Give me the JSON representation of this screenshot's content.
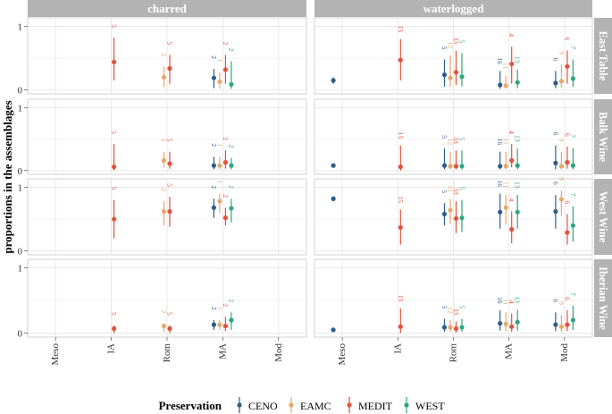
{
  "chart_data": {
    "type": "faceted-pointrange",
    "ylabel": "proportions in the assemblages",
    "categories": [
      "Meso",
      "IA",
      "Rom",
      "MA",
      "Mod"
    ],
    "y_ticks": [
      "0",
      "1"
    ],
    "ylim": [
      0,
      1
    ],
    "columns": [
      "charred",
      "waterlogged"
    ],
    "rows": [
      "East Table",
      "Balk Wine",
      "West Wine",
      "Iberian Wine"
    ],
    "legend": {
      "title": "Preservation",
      "position": "bottom",
      "entries": [
        {
          "name": "CENO",
          "color": "#2c5d8a"
        },
        {
          "name": "EAMC",
          "color": "#e6a96b"
        },
        {
          "name": "MEDIT",
          "color": "#e4513a"
        },
        {
          "name": "WEST",
          "color": "#2ea581"
        }
      ]
    },
    "points": [
      {
        "col": "charred",
        "row": "East Table",
        "period": "IA",
        "group": "MEDIT",
        "y": 0.44,
        "lo": 0.15,
        "hi": 0.82,
        "n": "5"
      },
      {
        "col": "charred",
        "row": "East Table",
        "period": "Rom",
        "group": "EAMC",
        "y": 0.2,
        "lo": 0.05,
        "hi": 0.37,
        "n": "2"
      },
      {
        "col": "charred",
        "row": "East Table",
        "period": "Rom",
        "group": "MEDIT",
        "y": 0.34,
        "lo": 0.1,
        "hi": 0.55,
        "n": "5"
      },
      {
        "col": "charred",
        "row": "East Table",
        "period": "MA",
        "group": "CENO",
        "y": 0.19,
        "lo": 0.03,
        "hi": 0.33,
        "n": "2"
      },
      {
        "col": "charred",
        "row": "East Table",
        "period": "MA",
        "group": "EAMC",
        "y": 0.13,
        "lo": 0.02,
        "hi": 0.28,
        "n": "1"
      },
      {
        "col": "charred",
        "row": "East Table",
        "period": "MA",
        "group": "MEDIT",
        "y": 0.32,
        "lo": 0.1,
        "hi": 0.55,
        "n": "2"
      },
      {
        "col": "charred",
        "row": "East Table",
        "period": "MA",
        "group": "WEST",
        "y": 0.09,
        "lo": 0.02,
        "hi": 0.45,
        "n": "2"
      },
      {
        "col": "charred",
        "row": "Balk Wine",
        "period": "IA",
        "group": "MEDIT",
        "y": 0.06,
        "lo": 0.0,
        "hi": 0.42,
        "n": "5"
      },
      {
        "col": "charred",
        "row": "Balk Wine",
        "period": "Rom",
        "group": "EAMC",
        "y": 0.16,
        "lo": 0.05,
        "hi": 0.3,
        "n": "2"
      },
      {
        "col": "charred",
        "row": "Balk Wine",
        "period": "Rom",
        "group": "MEDIT",
        "y": 0.11,
        "lo": 0.03,
        "hi": 0.3,
        "n": "5"
      },
      {
        "col": "charred",
        "row": "Balk Wine",
        "period": "MA",
        "group": "CENO",
        "y": 0.08,
        "lo": 0.02,
        "hi": 0.22,
        "n": "2"
      },
      {
        "col": "charred",
        "row": "Balk Wine",
        "period": "MA",
        "group": "EAMC",
        "y": 0.08,
        "lo": 0.02,
        "hi": 0.22,
        "n": "1"
      },
      {
        "col": "charred",
        "row": "Balk Wine",
        "period": "MA",
        "group": "MEDIT",
        "y": 0.13,
        "lo": 0.03,
        "hi": 0.32,
        "n": "2"
      },
      {
        "col": "charred",
        "row": "Balk Wine",
        "period": "MA",
        "group": "WEST",
        "y": 0.08,
        "lo": 0.02,
        "hi": 0.2,
        "n": "2"
      },
      {
        "col": "charred",
        "row": "West Wine",
        "period": "IA",
        "group": "MEDIT",
        "y": 0.5,
        "lo": 0.2,
        "hi": 0.8,
        "n": "5"
      },
      {
        "col": "charred",
        "row": "West Wine",
        "period": "Rom",
        "group": "EAMC",
        "y": 0.62,
        "lo": 0.4,
        "hi": 0.78,
        "n": "2"
      },
      {
        "col": "charred",
        "row": "West Wine",
        "period": "Rom",
        "group": "MEDIT",
        "y": 0.62,
        "lo": 0.38,
        "hi": 0.85,
        "n": "5"
      },
      {
        "col": "charred",
        "row": "West Wine",
        "period": "MA",
        "group": "CENO",
        "y": 0.68,
        "lo": 0.52,
        "hi": 0.82,
        "n": "2"
      },
      {
        "col": "charred",
        "row": "West Wine",
        "period": "MA",
        "group": "EAMC",
        "y": 0.78,
        "lo": 0.6,
        "hi": 0.9,
        "n": "1"
      },
      {
        "col": "charred",
        "row": "West Wine",
        "period": "MA",
        "group": "MEDIT",
        "y": 0.52,
        "lo": 0.4,
        "hi": 0.68,
        "n": "2"
      },
      {
        "col": "charred",
        "row": "West Wine",
        "period": "MA",
        "group": "WEST",
        "y": 0.67,
        "lo": 0.45,
        "hi": 0.82,
        "n": "2"
      },
      {
        "col": "charred",
        "row": "Iberian Wine",
        "period": "IA",
        "group": "MEDIT",
        "y": 0.07,
        "lo": 0.0,
        "hi": 0.12,
        "n": "5"
      },
      {
        "col": "charred",
        "row": "Iberian Wine",
        "period": "Rom",
        "group": "EAMC",
        "y": 0.11,
        "lo": 0.02,
        "hi": 0.15,
        "n": "2"
      },
      {
        "col": "charred",
        "row": "Iberian Wine",
        "period": "Rom",
        "group": "MEDIT",
        "y": 0.07,
        "lo": 0.0,
        "hi": 0.12,
        "n": "5"
      },
      {
        "col": "charred",
        "row": "Iberian Wine",
        "period": "MA",
        "group": "CENO",
        "y": 0.13,
        "lo": 0.05,
        "hi": 0.2,
        "n": "2"
      },
      {
        "col": "charred",
        "row": "Iberian Wine",
        "period": "MA",
        "group": "EAMC",
        "y": 0.13,
        "lo": 0.05,
        "hi": 0.2,
        "n": "1"
      },
      {
        "col": "charred",
        "row": "Iberian Wine",
        "period": "MA",
        "group": "MEDIT",
        "y": 0.11,
        "lo": 0.03,
        "hi": 0.25,
        "n": "2"
      },
      {
        "col": "charred",
        "row": "Iberian Wine",
        "period": "MA",
        "group": "WEST",
        "y": 0.2,
        "lo": 0.05,
        "hi": 0.32,
        "n": "2"
      },
      {
        "col": "waterlogged",
        "row": "East Table",
        "period": "Meso",
        "group": "CENO",
        "y": 0.15,
        "lo": 0.1,
        "hi": 0.2,
        "n": ""
      },
      {
        "col": "waterlogged",
        "row": "East Table",
        "period": "IA",
        "group": "MEDIT",
        "y": 0.47,
        "lo": 0.15,
        "hi": 0.8,
        "n": "15"
      },
      {
        "col": "waterlogged",
        "row": "East Table",
        "period": "Rom",
        "group": "CENO",
        "y": 0.24,
        "lo": 0.05,
        "hi": 0.48,
        "n": "5"
      },
      {
        "col": "waterlogged",
        "row": "East Table",
        "period": "Rom",
        "group": "EAMC",
        "y": 0.19,
        "lo": 0.05,
        "hi": 0.55,
        "n": "12"
      },
      {
        "col": "waterlogged",
        "row": "East Table",
        "period": "Rom",
        "group": "MEDIT",
        "y": 0.28,
        "lo": 0.08,
        "hi": 0.62,
        "n": "33"
      },
      {
        "col": "waterlogged",
        "row": "East Table",
        "period": "Rom",
        "group": "WEST",
        "y": 0.21,
        "lo": 0.06,
        "hi": 0.58,
        "n": "5"
      },
      {
        "col": "waterlogged",
        "row": "East Table",
        "period": "MA",
        "group": "CENO",
        "y": 0.08,
        "lo": 0.02,
        "hi": 0.3,
        "n": "16"
      },
      {
        "col": "waterlogged",
        "row": "East Table",
        "period": "MA",
        "group": "EAMC",
        "y": 0.07,
        "lo": 0.02,
        "hi": 0.22,
        "n": "11"
      },
      {
        "col": "waterlogged",
        "row": "East Table",
        "period": "MA",
        "group": "MEDIT",
        "y": 0.41,
        "lo": 0.1,
        "hi": 0.68,
        "n": "4"
      },
      {
        "col": "waterlogged",
        "row": "East Table",
        "period": "MA",
        "group": "WEST",
        "y": 0.12,
        "lo": 0.03,
        "hi": 0.32,
        "n": "13"
      },
      {
        "col": "waterlogged",
        "row": "East Table",
        "period": "Mod",
        "group": "CENO",
        "y": 0.11,
        "lo": 0.03,
        "hi": 0.3,
        "n": "6"
      },
      {
        "col": "waterlogged",
        "row": "East Table",
        "period": "Mod",
        "group": "EAMC",
        "y": 0.14,
        "lo": 0.04,
        "hi": 0.4,
        "n": "9"
      },
      {
        "col": "waterlogged",
        "row": "East Table",
        "period": "Mod",
        "group": "MEDIT",
        "y": 0.37,
        "lo": 0.1,
        "hi": 0.62,
        "n": "6"
      },
      {
        "col": "waterlogged",
        "row": "East Table",
        "period": "Mod",
        "group": "WEST",
        "y": 0.18,
        "lo": 0.05,
        "hi": 0.48,
        "n": "7"
      },
      {
        "col": "waterlogged",
        "row": "Balk Wine",
        "period": "Meso",
        "group": "CENO",
        "y": 0.08,
        "lo": 0.05,
        "hi": 0.1,
        "n": ""
      },
      {
        "col": "waterlogged",
        "row": "Balk Wine",
        "period": "IA",
        "group": "MEDIT",
        "y": 0.06,
        "lo": 0.0,
        "hi": 0.4,
        "n": "15"
      },
      {
        "col": "waterlogged",
        "row": "Balk Wine",
        "period": "Rom",
        "group": "CENO",
        "y": 0.08,
        "lo": 0.02,
        "hi": 0.35,
        "n": "5"
      },
      {
        "col": "waterlogged",
        "row": "Balk Wine",
        "period": "Rom",
        "group": "EAMC",
        "y": 0.07,
        "lo": 0.02,
        "hi": 0.3,
        "n": "12"
      },
      {
        "col": "waterlogged",
        "row": "Balk Wine",
        "period": "Rom",
        "group": "MEDIT",
        "y": 0.07,
        "lo": 0.02,
        "hi": 0.32,
        "n": "33"
      },
      {
        "col": "waterlogged",
        "row": "Balk Wine",
        "period": "Rom",
        "group": "WEST",
        "y": 0.07,
        "lo": 0.02,
        "hi": 0.32,
        "n": "5"
      },
      {
        "col": "waterlogged",
        "row": "Balk Wine",
        "period": "MA",
        "group": "CENO",
        "y": 0.07,
        "lo": 0.02,
        "hi": 0.3,
        "n": "16"
      },
      {
        "col": "waterlogged",
        "row": "Balk Wine",
        "period": "MA",
        "group": "EAMC",
        "y": 0.07,
        "lo": 0.02,
        "hi": 0.3,
        "n": "11"
      },
      {
        "col": "waterlogged",
        "row": "Balk Wine",
        "period": "MA",
        "group": "MEDIT",
        "y": 0.16,
        "lo": 0.05,
        "hi": 0.42,
        "n": "4"
      },
      {
        "col": "waterlogged",
        "row": "Balk Wine",
        "period": "MA",
        "group": "WEST",
        "y": 0.08,
        "lo": 0.02,
        "hi": 0.35,
        "n": "13"
      },
      {
        "col": "waterlogged",
        "row": "Balk Wine",
        "period": "Mod",
        "group": "CENO",
        "y": 0.12,
        "lo": 0.02,
        "hi": 0.4,
        "n": "6"
      },
      {
        "col": "waterlogged",
        "row": "Balk Wine",
        "period": "Mod",
        "group": "EAMC",
        "y": 0.07,
        "lo": 0.02,
        "hi": 0.3,
        "n": "9"
      },
      {
        "col": "waterlogged",
        "row": "Balk Wine",
        "period": "Mod",
        "group": "MEDIT",
        "y": 0.13,
        "lo": 0.03,
        "hi": 0.38,
        "n": "6"
      },
      {
        "col": "waterlogged",
        "row": "Balk Wine",
        "period": "Mod",
        "group": "WEST",
        "y": 0.08,
        "lo": 0.02,
        "hi": 0.36,
        "n": "7"
      },
      {
        "col": "waterlogged",
        "row": "West Wine",
        "period": "Meso",
        "group": "CENO",
        "y": 0.82,
        "lo": 0.78,
        "hi": 0.86,
        "n": ""
      },
      {
        "col": "waterlogged",
        "row": "West Wine",
        "period": "IA",
        "group": "MEDIT",
        "y": 0.37,
        "lo": 0.1,
        "hi": 0.65,
        "n": "15"
      },
      {
        "col": "waterlogged",
        "row": "West Wine",
        "period": "Rom",
        "group": "CENO",
        "y": 0.58,
        "lo": 0.4,
        "hi": 0.75,
        "n": "5"
      },
      {
        "col": "waterlogged",
        "row": "West Wine",
        "period": "Rom",
        "group": "EAMC",
        "y": 0.64,
        "lo": 0.42,
        "hi": 0.82,
        "n": "12"
      },
      {
        "col": "waterlogged",
        "row": "West Wine",
        "period": "Rom",
        "group": "MEDIT",
        "y": 0.51,
        "lo": 0.28,
        "hi": 0.78,
        "n": "33"
      },
      {
        "col": "waterlogged",
        "row": "West Wine",
        "period": "Rom",
        "group": "WEST",
        "y": 0.52,
        "lo": 0.3,
        "hi": 0.8,
        "n": "5"
      },
      {
        "col": "waterlogged",
        "row": "West Wine",
        "period": "MA",
        "group": "CENO",
        "y": 0.61,
        "lo": 0.35,
        "hi": 0.9,
        "n": "16"
      },
      {
        "col": "waterlogged",
        "row": "West Wine",
        "period": "MA",
        "group": "EAMC",
        "y": 0.68,
        "lo": 0.42,
        "hi": 0.88,
        "n": "11"
      },
      {
        "col": "waterlogged",
        "row": "West Wine",
        "period": "MA",
        "group": "MEDIT",
        "y": 0.34,
        "lo": 0.12,
        "hi": 0.62,
        "n": "4"
      },
      {
        "col": "waterlogged",
        "row": "West Wine",
        "period": "MA",
        "group": "WEST",
        "y": 0.61,
        "lo": 0.35,
        "hi": 0.88,
        "n": "13"
      },
      {
        "col": "waterlogged",
        "row": "West Wine",
        "period": "Mod",
        "group": "CENO",
        "y": 0.62,
        "lo": 0.35,
        "hi": 0.88,
        "n": "6"
      },
      {
        "col": "waterlogged",
        "row": "West Wine",
        "period": "Mod",
        "group": "EAMC",
        "y": 0.81,
        "lo": 0.55,
        "hi": 0.95,
        "n": "9"
      },
      {
        "col": "waterlogged",
        "row": "West Wine",
        "period": "Mod",
        "group": "MEDIT",
        "y": 0.29,
        "lo": 0.1,
        "hi": 0.58,
        "n": "6"
      },
      {
        "col": "waterlogged",
        "row": "West Wine",
        "period": "Mod",
        "group": "WEST",
        "y": 0.4,
        "lo": 0.15,
        "hi": 0.7,
        "n": "7"
      },
      {
        "col": "waterlogged",
        "row": "Iberian Wine",
        "period": "Meso",
        "group": "CENO",
        "y": 0.05,
        "lo": 0.02,
        "hi": 0.09,
        "n": ""
      },
      {
        "col": "waterlogged",
        "row": "Iberian Wine",
        "period": "IA",
        "group": "MEDIT",
        "y": 0.1,
        "lo": 0.0,
        "hi": 0.38,
        "n": "15"
      },
      {
        "col": "waterlogged",
        "row": "Iberian Wine",
        "period": "Rom",
        "group": "CENO",
        "y": 0.09,
        "lo": 0.02,
        "hi": 0.22,
        "n": "5"
      },
      {
        "col": "waterlogged",
        "row": "Iberian Wine",
        "period": "Rom",
        "group": "EAMC",
        "y": 0.09,
        "lo": 0.02,
        "hi": 0.2,
        "n": "12"
      },
      {
        "col": "waterlogged",
        "row": "Iberian Wine",
        "period": "Rom",
        "group": "MEDIT",
        "y": 0.07,
        "lo": 0.01,
        "hi": 0.18,
        "n": "33"
      },
      {
        "col": "waterlogged",
        "row": "Iberian Wine",
        "period": "Rom",
        "group": "WEST",
        "y": 0.09,
        "lo": 0.02,
        "hi": 0.22,
        "n": "5"
      },
      {
        "col": "waterlogged",
        "row": "Iberian Wine",
        "period": "MA",
        "group": "CENO",
        "y": 0.15,
        "lo": 0.04,
        "hi": 0.35,
        "n": "16"
      },
      {
        "col": "waterlogged",
        "row": "Iberian Wine",
        "period": "MA",
        "group": "EAMC",
        "y": 0.14,
        "lo": 0.03,
        "hi": 0.32,
        "n": "11"
      },
      {
        "col": "waterlogged",
        "row": "Iberian Wine",
        "period": "MA",
        "group": "MEDIT",
        "y": 0.1,
        "lo": 0.02,
        "hi": 0.3,
        "n": "4"
      },
      {
        "col": "waterlogged",
        "row": "Iberian Wine",
        "period": "MA",
        "group": "WEST",
        "y": 0.17,
        "lo": 0.04,
        "hi": 0.36,
        "n": "13"
      },
      {
        "col": "waterlogged",
        "row": "Iberian Wine",
        "period": "Mod",
        "group": "CENO",
        "y": 0.13,
        "lo": 0.03,
        "hi": 0.32,
        "n": "6"
      },
      {
        "col": "waterlogged",
        "row": "Iberian Wine",
        "period": "Mod",
        "group": "EAMC",
        "y": 0.1,
        "lo": 0.02,
        "hi": 0.28,
        "n": "9"
      },
      {
        "col": "waterlogged",
        "row": "Iberian Wine",
        "period": "Mod",
        "group": "MEDIT",
        "y": 0.13,
        "lo": 0.03,
        "hi": 0.35,
        "n": "6"
      },
      {
        "col": "waterlogged",
        "row": "Iberian Wine",
        "period": "Mod",
        "group": "WEST",
        "y": 0.2,
        "lo": 0.05,
        "hi": 0.42,
        "n": "7"
      }
    ]
  }
}
